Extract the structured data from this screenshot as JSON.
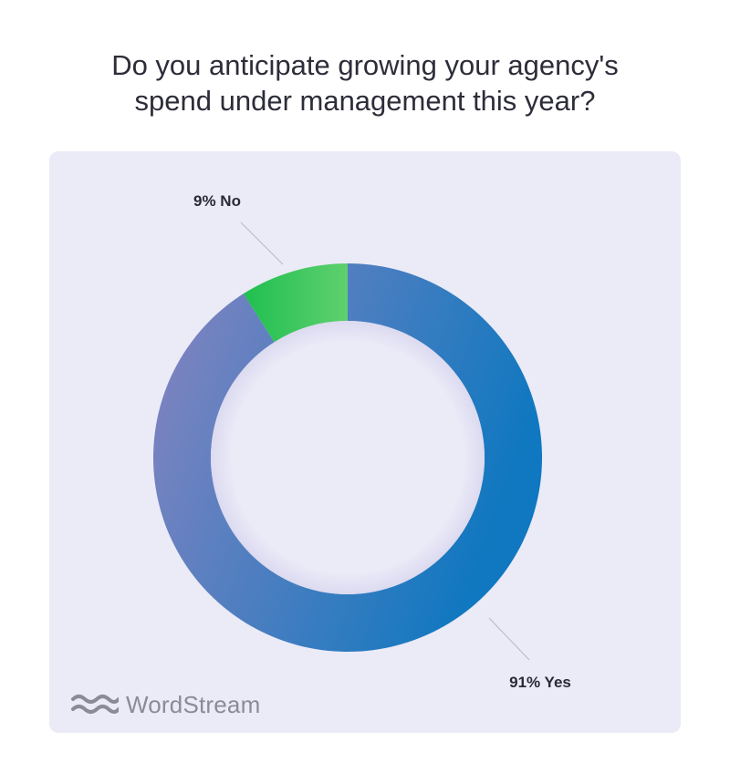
{
  "title": {
    "line1": "Do you anticipate growing your agency's",
    "line2": "spend under management this year?"
  },
  "brand": {
    "name": "WordStream",
    "icon": "wave-logo-icon"
  },
  "colors": {
    "card_background": "#ebeaf7",
    "yes_gradient_start": "#8884c0",
    "yes_gradient_end": "#0f78c0",
    "no_gradient_start": "#1fbf50",
    "no_gradient_end": "#5fd06e",
    "leader_line": "#b8b8c8",
    "inner_circle": "#ebeaf7"
  },
  "chart_data": {
    "type": "pie",
    "subtype": "donut",
    "title": "Do you anticipate growing your agency's spend under management this year?",
    "slices": [
      {
        "name": "Yes",
        "value": 91,
        "label": "91% Yes"
      },
      {
        "name": "No",
        "value": 9,
        "label": "9% No"
      }
    ],
    "unit": "%",
    "start_angle": "12 o'clock",
    "direction": "clockwise"
  }
}
